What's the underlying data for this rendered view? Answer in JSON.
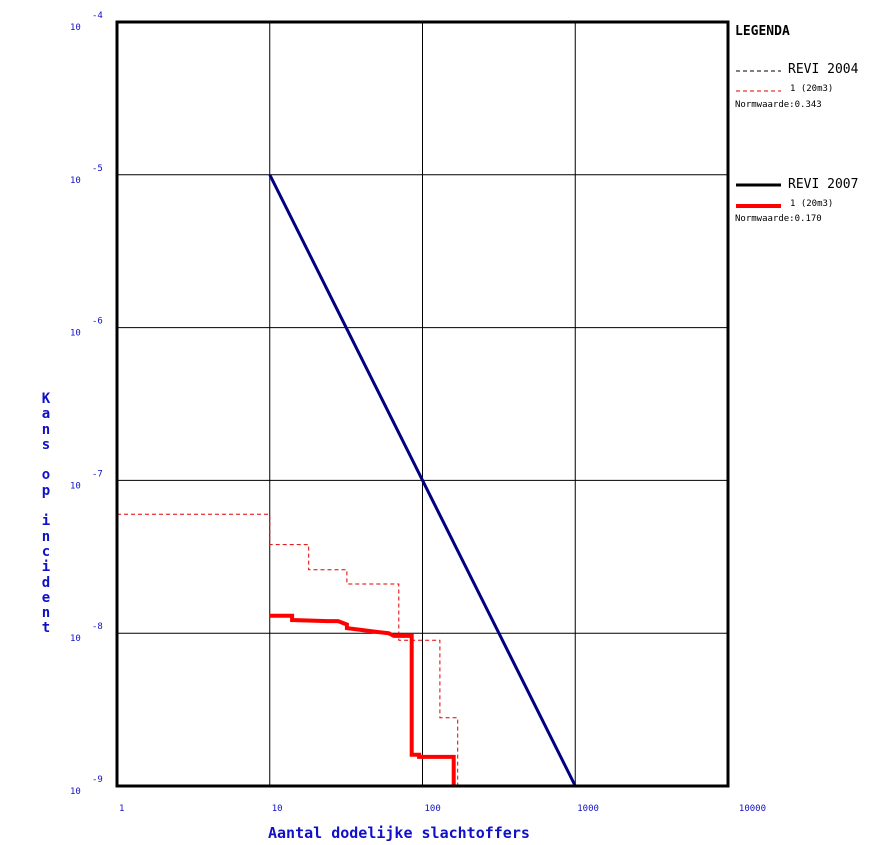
{
  "chart_data": {
    "type": "line",
    "title": "",
    "xlabel": "Aantal dodelijke slachtoffers",
    "ylabel": "Kans op incident",
    "x_scale": "log",
    "y_scale": "log",
    "xlim": [
      1,
      10000
    ],
    "ylim": [
      1e-09,
      0.0001
    ],
    "grid": true,
    "x_ticks": [
      {
        "value": 1,
        "label": "1"
      },
      {
        "value": 10,
        "label": "10"
      },
      {
        "value": 100,
        "label": "100"
      },
      {
        "value": 1000,
        "label": "1000"
      },
      {
        "value": 10000,
        "label": "10000"
      }
    ],
    "y_ticks": [
      {
        "value": 1e-09,
        "base": "10",
        "exp": "-9"
      },
      {
        "value": 1e-08,
        "base": "10",
        "exp": "-8"
      },
      {
        "value": 1e-07,
        "base": "10",
        "exp": "-7"
      },
      {
        "value": 1e-06,
        "base": "10",
        "exp": "-6"
      },
      {
        "value": 1e-05,
        "base": "10",
        "exp": "-5"
      },
      {
        "value": 0.0001,
        "base": "10",
        "exp": "-4"
      }
    ],
    "legend": {
      "title": "LEGENDA",
      "placement": "right",
      "groups": [
        {
          "name": "REVI 2004",
          "sub": "1 (20m3)",
          "norm": "Normwaarde:0.343",
          "style": "dashed"
        },
        {
          "name": "REVI 2007",
          "sub": "1 (20m3)",
          "norm": "Normwaarde:0.170",
          "style": "solid"
        }
      ]
    },
    "series": [
      {
        "id": "norm",
        "color": "#000080",
        "width": 3,
        "dash": "",
        "shape": "line",
        "points": [
          [
            10,
            1e-05
          ],
          [
            1000,
            1e-09
          ]
        ]
      },
      {
        "id": "revi2004",
        "color": "#e00000",
        "width": 1,
        "dash": "4,3",
        "shape": "step",
        "points": [
          [
            1,
            6e-08
          ],
          [
            10,
            6e-08
          ],
          [
            10,
            3.8e-08
          ],
          [
            18,
            3.8e-08
          ],
          [
            18,
            2.6e-08
          ],
          [
            32,
            2.6e-08
          ],
          [
            32,
            2.1e-08
          ],
          [
            70,
            2.1e-08
          ],
          [
            70,
            9e-09
          ],
          [
            130,
            9e-09
          ],
          [
            130,
            2.8e-09
          ],
          [
            170,
            2.8e-09
          ],
          [
            170,
            1e-09
          ]
        ]
      },
      {
        "id": "revi2007",
        "color": "#ff0000",
        "width": 4,
        "dash": "",
        "shape": "step",
        "points": [
          [
            10,
            1.3e-08
          ],
          [
            14,
            1.3e-08
          ],
          [
            14,
            1.22e-08
          ],
          [
            24,
            1.2e-08
          ],
          [
            28,
            1.2e-08
          ],
          [
            32,
            1.14e-08
          ],
          [
            32,
            1.08e-08
          ],
          [
            50,
            1.02e-08
          ],
          [
            60,
            1e-08
          ],
          [
            65,
            9.6e-09
          ],
          [
            85,
            9.6e-09
          ],
          [
            85,
            1.6e-09
          ],
          [
            95,
            1.6e-09
          ],
          [
            95,
            1.55e-09
          ],
          [
            160,
            1.55e-09
          ],
          [
            160,
            1e-09
          ]
        ]
      }
    ]
  }
}
